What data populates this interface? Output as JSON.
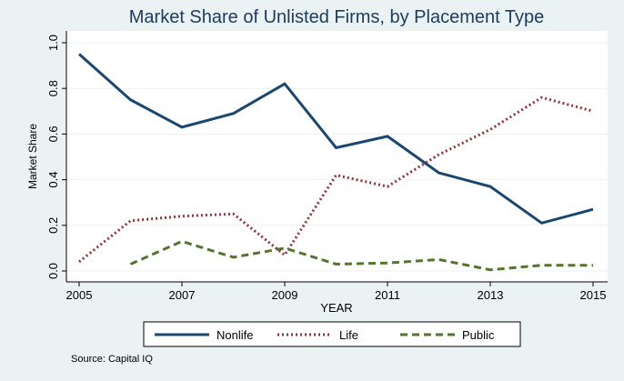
{
  "chart_data": {
    "type": "line",
    "title": "Market Share of Unlisted Firms, by Placement Type",
    "x_label": "YEAR",
    "y_label": "Market Share",
    "note": "Source: Capital IQ",
    "x": [
      2005,
      2006,
      2007,
      2008,
      2009,
      2010,
      2011,
      2012,
      2013,
      2014,
      2015
    ],
    "series": [
      {
        "name": "Nonlife",
        "color": "#1a476f",
        "dash": "solid",
        "values": [
          0.95,
          0.75,
          0.63,
          0.69,
          0.82,
          0.54,
          0.59,
          0.43,
          0.37,
          0.21,
          0.27
        ]
      },
      {
        "name": "Life",
        "color": "#90353b",
        "dash": "dot",
        "values": [
          0.04,
          0.22,
          0.24,
          0.25,
          0.07,
          0.42,
          0.37,
          0.51,
          0.62,
          0.76,
          0.7
        ]
      },
      {
        "name": "Public",
        "color": "#55752f",
        "dash": "dash",
        "values": [
          null,
          0.03,
          0.13,
          0.06,
          0.1,
          0.03,
          0.035,
          0.05,
          0.005,
          0.025,
          0.025
        ]
      }
    ],
    "xlim": [
      2005,
      2015
    ],
    "xticks": [
      2005,
      2007,
      2009,
      2011,
      2013,
      2015
    ],
    "ylim": [
      0,
      1
    ],
    "yticks": [
      {
        "value": 0,
        "label": "0.0"
      },
      0.2,
      0.4,
      0.6,
      0.8,
      {
        "value": 1,
        "label": "1.0"
      }
    ],
    "grid": true,
    "legend": "bottom"
  }
}
